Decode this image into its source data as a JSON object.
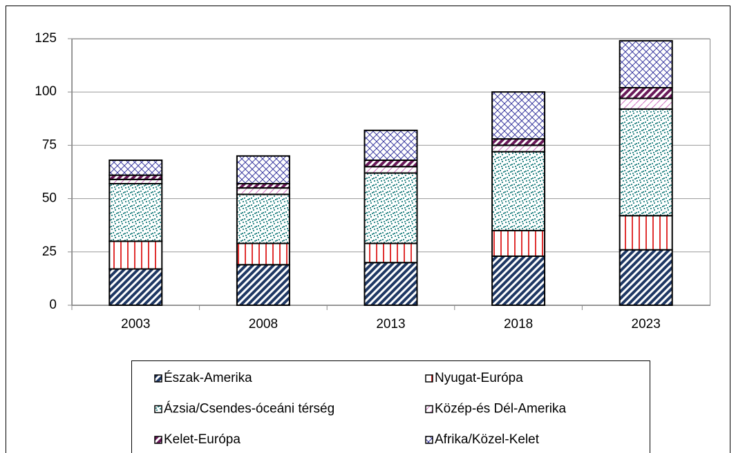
{
  "chart_data": {
    "type": "bar",
    "stacked": true,
    "categories": [
      "2003",
      "2008",
      "2013",
      "2018",
      "2023"
    ],
    "series": [
      {
        "name": "Észak-Amerika",
        "color": "#1f3864",
        "values": [
          17,
          19,
          20,
          23,
          26
        ]
      },
      {
        "name": "Nyugat-Európa",
        "color": "#e03030",
        "values": [
          13,
          10,
          9,
          12,
          16
        ]
      },
      {
        "name": "Ázsia/Csendes-óceáni térség",
        "color": "#1f7f7f",
        "values": [
          27,
          23,
          33,
          37,
          50
        ]
      },
      {
        "name": "Közép-és Dél-Amerika",
        "color": "#d070c0",
        "values": [
          2,
          3,
          3,
          3,
          5
        ]
      },
      {
        "name": "Kelet-Európa",
        "color": "#6a1a5a",
        "values": [
          2,
          2,
          3,
          3,
          5
        ]
      },
      {
        "name": "Afrika/Közel-Kelet",
        "color": "#3a3aa0",
        "values": [
          7,
          13,
          14,
          22,
          22
        ]
      }
    ],
    "ylim": [
      0,
      125
    ],
    "yticks": [
      0,
      25,
      50,
      75,
      100,
      125
    ],
    "grid": true
  }
}
